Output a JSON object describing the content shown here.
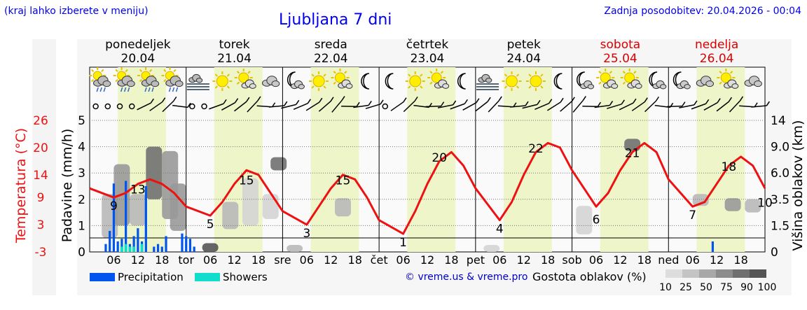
{
  "header": {
    "hint": "(kraj lahko izberete v meniju)",
    "title": "Ljubljana 7 dni",
    "updated": "Zadnja posodobitev: 20.04.2026 - 00:04"
  },
  "days": [
    {
      "name": "ponedeljek",
      "date": "20.04",
      "weekend": false,
      "abbr": ""
    },
    {
      "name": "torek",
      "date": "21.04",
      "weekend": false,
      "abbr": "tor"
    },
    {
      "name": "sreda",
      "date": "22.04",
      "weekend": false,
      "abbr": "sre"
    },
    {
      "name": "četrtek",
      "date": "23.04",
      "weekend": false,
      "abbr": "čet"
    },
    {
      "name": "petek",
      "date": "24.04",
      "weekend": false,
      "abbr": "pet"
    },
    {
      "name": "sobota",
      "date": "25.04",
      "weekend": true,
      "abbr": "sob"
    },
    {
      "name": "nedelja",
      "date": "26.04",
      "weekend": true,
      "abbr": "ned"
    }
  ],
  "hour_ticks": [
    "06",
    "12",
    "18"
  ],
  "weather_icons": [
    [
      "rain-cloud-icon",
      "rain-cloud-icon",
      "rain-cloud-icon",
      "rain-cloud-icon"
    ],
    [
      "fog-icon",
      "sun-icon",
      "sun-cloud-icon",
      "cloud-icon"
    ],
    [
      "moon-cloud-icon",
      "sun-icon",
      "sun-cloud-icon",
      "moon-icon"
    ],
    [
      "moon-icon",
      "sun-icon",
      "sun-cloud-icon",
      "moon-icon"
    ],
    [
      "fog-icon",
      "sun-icon",
      "sun-icon",
      "moon-icon"
    ],
    [
      "moon-cloud-icon",
      "sun-cloud-icon",
      "sun-cloud-icon",
      "moon-cloud-icon"
    ],
    [
      "moon-cloud-icon",
      "cloud-icon",
      "sun-cloud-icon",
      "cloud-icon"
    ]
  ],
  "colors": {
    "day_shade": "#eef5c9",
    "night_shade": "#fafafa",
    "temperature": "#ee1111",
    "precipitation": "#0055ee",
    "showers": "#11ddcc",
    "weekend": "#dd0000",
    "weekday": "#000000"
  },
  "legend": {
    "precipitation": "Precipitation",
    "showers": "Showers",
    "density_label": "Gostota oblakov (%)",
    "density_ticks": [
      "10",
      "25",
      "50",
      "75",
      "90",
      "100"
    ]
  },
  "copyright": "© vreme.us & vreme.pro",
  "chart_data": {
    "type": "line",
    "x_unit": "hours from 20.04 00:00",
    "left_axis": {
      "label": "Padavine (mm/h)",
      "ticks": [
        "0",
        "1",
        "2",
        "3",
        "4",
        "5"
      ],
      "range": [
        0,
        5
      ]
    },
    "temp_axis": {
      "label": "Temperatura (°C)",
      "ticks": [
        "-3",
        "3",
        "9",
        "14",
        "20",
        "26"
      ],
      "range": [
        -3,
        26
      ]
    },
    "right_axis": {
      "label": "Višina oblakov (km)",
      "ticks": [
        "0",
        "1.5",
        "3.5",
        "6.0",
        "9.0",
        "14"
      ]
    },
    "temperature": {
      "x": [
        0,
        6,
        9,
        12,
        15,
        18,
        21,
        24,
        30,
        33,
        36,
        39,
        42,
        45,
        48,
        54,
        57,
        60,
        63,
        66,
        69,
        72,
        78,
        81,
        84,
        87,
        90,
        93,
        96,
        102,
        105,
        108,
        111,
        114,
        117,
        120,
        126,
        129,
        132,
        135,
        138,
        141,
        144,
        150,
        153,
        156,
        159,
        162,
        165,
        168
      ],
      "y": [
        11,
        9,
        10,
        12,
        13,
        12,
        10,
        7,
        5,
        8,
        12,
        15,
        14,
        10,
        6,
        3,
        7,
        11,
        14,
        13,
        9,
        4,
        1,
        6,
        12,
        17,
        19,
        16,
        11,
        4,
        8,
        14,
        19,
        21,
        20,
        15,
        7,
        10,
        15,
        19,
        21,
        19,
        13,
        7,
        8,
        12,
        16,
        18,
        16,
        11
      ],
      "labels": [
        {
          "x": 6,
          "y": 9,
          "text": "9"
        },
        {
          "x": 12,
          "y": 13,
          "text": "13"
        },
        {
          "x": 30,
          "y": 5,
          "text": "5"
        },
        {
          "x": 39,
          "y": 15,
          "text": "15"
        },
        {
          "x": 54,
          "y": 3,
          "text": "3"
        },
        {
          "x": 63,
          "y": 15,
          "text": "15"
        },
        {
          "x": 78,
          "y": 1,
          "text": "1"
        },
        {
          "x": 87,
          "y": 20,
          "text": "20"
        },
        {
          "x": 102,
          "y": 4,
          "text": "4"
        },
        {
          "x": 111,
          "y": 22,
          "text": "22"
        },
        {
          "x": 126,
          "y": 6,
          "text": "6"
        },
        {
          "x": 135,
          "y": 21,
          "text": "21"
        },
        {
          "x": 150,
          "y": 7,
          "text": "7"
        },
        {
          "x": 159,
          "y": 18,
          "text": "18"
        },
        {
          "x": 168,
          "y": 10,
          "text": "10"
        }
      ]
    },
    "precipitation": {
      "x": [
        4,
        5,
        6,
        7,
        8,
        9,
        10,
        11,
        12,
        13,
        14,
        16,
        17,
        18,
        19,
        23,
        24,
        25,
        26,
        155
      ],
      "y": [
        0.3,
        0.8,
        2.6,
        0.4,
        0.5,
        2.7,
        0.3,
        0.6,
        0.9,
        0.4,
        2.5,
        0.2,
        0.3,
        0.2,
        0.6,
        0.7,
        0.6,
        0.5,
        0.2,
        0.4
      ]
    },
    "showers": {
      "x": [
        8,
        9,
        10,
        11,
        13
      ],
      "y": [
        0.2,
        0.3,
        0.2,
        0.2,
        0.3
      ]
    },
    "clouds": [
      {
        "x": 5,
        "hmin": 0.8,
        "hmax": 4.0,
        "density": 50
      },
      {
        "x": 8,
        "hmin": 1.5,
        "hmax": 7.0,
        "density": 75
      },
      {
        "x": 12,
        "hmin": 1.5,
        "hmax": 4.0,
        "density": 50
      },
      {
        "x": 16,
        "hmin": 3.5,
        "hmax": 9.0,
        "density": 90
      },
      {
        "x": 20,
        "hmin": 2.0,
        "hmax": 8.5,
        "density": 75
      },
      {
        "x": 22,
        "hmin": 1.2,
        "hmax": 5.0,
        "density": 75
      },
      {
        "x": 30,
        "hmin": 0,
        "hmax": 0.5,
        "density": 100
      },
      {
        "x": 35,
        "hmin": 1.3,
        "hmax": 3.3,
        "density": 50
      },
      {
        "x": 40,
        "hmin": 1.5,
        "hmax": 5.5,
        "density": 25
      },
      {
        "x": 45,
        "hmin": 2.0,
        "hmax": 4.0,
        "density": 25
      },
      {
        "x": 47,
        "hmin": 6.3,
        "hmax": 7.8,
        "density": 90
      },
      {
        "x": 51,
        "hmin": 0,
        "hmax": 0.4,
        "density": 50
      },
      {
        "x": 63,
        "hmin": 2.2,
        "hmax": 3.6,
        "density": 50
      },
      {
        "x": 100,
        "hmin": 0,
        "hmax": 0.4,
        "density": 25
      },
      {
        "x": 123,
        "hmin": 1.0,
        "hmax": 3.0,
        "density": 25
      },
      {
        "x": 135,
        "hmin": 8.5,
        "hmax": 10.5,
        "density": 90
      },
      {
        "x": 152,
        "hmin": 3.0,
        "hmax": 4.0,
        "density": 50
      },
      {
        "x": 160,
        "hmin": 2.6,
        "hmax": 3.6,
        "density": 75
      },
      {
        "x": 165,
        "hmin": 2.5,
        "hmax": 3.5,
        "density": 50
      }
    ]
  }
}
